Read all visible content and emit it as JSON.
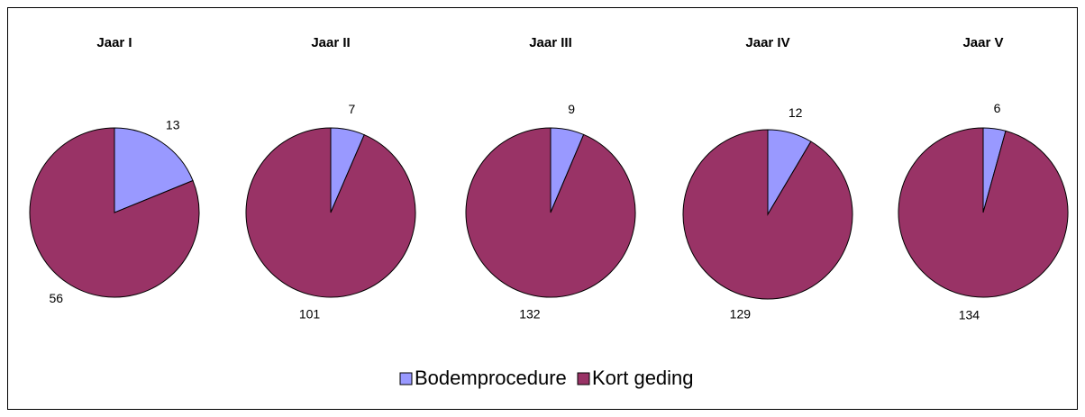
{
  "chart_data": [
    {
      "type": "pie",
      "title": "Jaar I",
      "categories": [
        "Bodemprocedure",
        "Kort geding"
      ],
      "values": [
        13,
        56
      ],
      "colors": [
        "#9999ff",
        "#993366"
      ]
    },
    {
      "type": "pie",
      "title": "Jaar II",
      "categories": [
        "Bodemprocedure",
        "Kort geding"
      ],
      "values": [
        7,
        101
      ],
      "colors": [
        "#9999ff",
        "#993366"
      ]
    },
    {
      "type": "pie",
      "title": "Jaar III",
      "categories": [
        "Bodemprocedure",
        "Kort geding"
      ],
      "values": [
        9,
        132
      ],
      "colors": [
        "#9999ff",
        "#993366"
      ]
    },
    {
      "type": "pie",
      "title": "Jaar IV",
      "categories": [
        "Bodemprocedure",
        "Kort geding"
      ],
      "values": [
        12,
        129
      ],
      "colors": [
        "#9999ff",
        "#993366"
      ]
    },
    {
      "type": "pie",
      "title": "Jaar V",
      "categories": [
        "Bodemprocedure",
        "Kort geding"
      ],
      "values": [
        6,
        134
      ],
      "colors": [
        "#9999ff",
        "#993366"
      ]
    }
  ]
}
